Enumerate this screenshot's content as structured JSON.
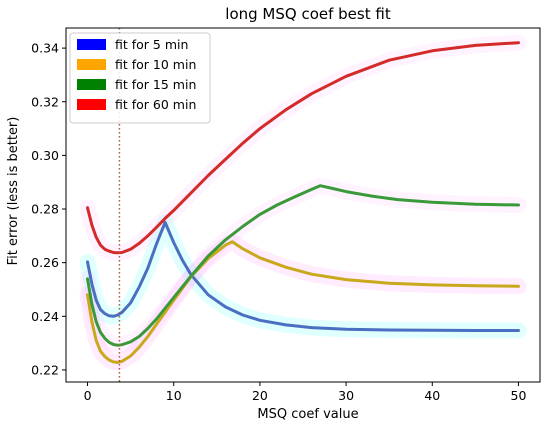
{
  "chart_data": {
    "type": "line",
    "title": "long MSQ coef best fit",
    "xlabel": "MSQ coef value",
    "ylabel": "Fit error (less is better)",
    "xlim": [
      -2.5,
      52.5
    ],
    "ylim": [
      0.2155,
      0.3475
    ],
    "xticks": [
      0,
      10,
      20,
      30,
      40,
      50
    ],
    "yticks": [
      0.22,
      0.24,
      0.26,
      0.28,
      0.3,
      0.32,
      0.34
    ],
    "ytick_labels": [
      "0.22",
      "0.24",
      "0.26",
      "0.28",
      "0.30",
      "0.32",
      "0.34"
    ],
    "grid": false,
    "legend_position": "top-left",
    "vline": {
      "x": 3.7,
      "style": "dotted",
      "color": "#b5573a"
    },
    "series": [
      {
        "name": "fit for 5 min",
        "legend_color": "#0000ff",
        "line_color": "#4a6fc0",
        "glow_color": "#00ffff",
        "x": [
          0,
          0.5,
          1,
          1.5,
          2,
          2.5,
          3,
          3.5,
          4,
          5,
          6,
          7,
          8,
          9,
          10,
          11,
          12,
          14,
          16,
          18,
          20,
          23,
          26,
          30,
          35,
          40,
          45,
          50
        ],
        "y": [
          0.2603,
          0.252,
          0.246,
          0.2425,
          0.241,
          0.2402,
          0.24,
          0.2405,
          0.2415,
          0.245,
          0.251,
          0.258,
          0.267,
          0.275,
          0.2675,
          0.261,
          0.2555,
          0.248,
          0.2435,
          0.2405,
          0.2385,
          0.2368,
          0.2358,
          0.2352,
          0.2349,
          0.2348,
          0.2347,
          0.2347
        ]
      },
      {
        "name": "fit for 10 min",
        "legend_color": "#ffa500",
        "line_color": "#c9a81c",
        "glow_color": "#ff66ff",
        "x": [
          0,
          0.5,
          1,
          1.5,
          2,
          2.5,
          3,
          3.5,
          4,
          5,
          6,
          7,
          8,
          10,
          12,
          14,
          16,
          16.8,
          18,
          20,
          23,
          26,
          30,
          35,
          40,
          45,
          50
        ],
        "y": [
          0.248,
          0.238,
          0.231,
          0.227,
          0.225,
          0.2237,
          0.223,
          0.2228,
          0.2232,
          0.2252,
          0.2285,
          0.2325,
          0.237,
          0.246,
          0.2548,
          0.2615,
          0.2665,
          0.2678,
          0.2652,
          0.2618,
          0.2583,
          0.2557,
          0.2537,
          0.2523,
          0.2517,
          0.2514,
          0.2512
        ]
      },
      {
        "name": "fit for 15 min",
        "legend_color": "#008000",
        "line_color": "#3a9a3a",
        "glow_color": "#ff99ff",
        "x": [
          0,
          0.5,
          1,
          1.5,
          2,
          2.5,
          3,
          3.5,
          4,
          5,
          6,
          7,
          8,
          10,
          12,
          14,
          16,
          18,
          20,
          22,
          24,
          26,
          27,
          28,
          30,
          33,
          36,
          40,
          45,
          50
        ],
        "y": [
          0.254,
          0.2445,
          0.238,
          0.234,
          0.2318,
          0.2303,
          0.2295,
          0.2292,
          0.2294,
          0.2305,
          0.2325,
          0.2355,
          0.239,
          0.247,
          0.255,
          0.2625,
          0.2685,
          0.2735,
          0.278,
          0.2815,
          0.2845,
          0.2873,
          0.2887,
          0.288,
          0.2865,
          0.2848,
          0.2835,
          0.2825,
          0.2818,
          0.2815
        ]
      },
      {
        "name": "fit for 60 min",
        "legend_color": "#ff0000",
        "line_color": "#d42a2a",
        "glow_color": "#ff99ff",
        "x": [
          0,
          0.5,
          1,
          1.5,
          2,
          2.5,
          3,
          3.5,
          4,
          5,
          6,
          7,
          8,
          9,
          10,
          12,
          14,
          16,
          18,
          20,
          23,
          26,
          30,
          35,
          40,
          45,
          50
        ],
        "y": [
          0.2805,
          0.274,
          0.2695,
          0.2665,
          0.265,
          0.2643,
          0.2638,
          0.2637,
          0.2638,
          0.265,
          0.2672,
          0.27,
          0.2732,
          0.2765,
          0.2795,
          0.286,
          0.2925,
          0.2985,
          0.3045,
          0.31,
          0.317,
          0.323,
          0.3295,
          0.3355,
          0.339,
          0.341,
          0.342
        ]
      }
    ]
  }
}
